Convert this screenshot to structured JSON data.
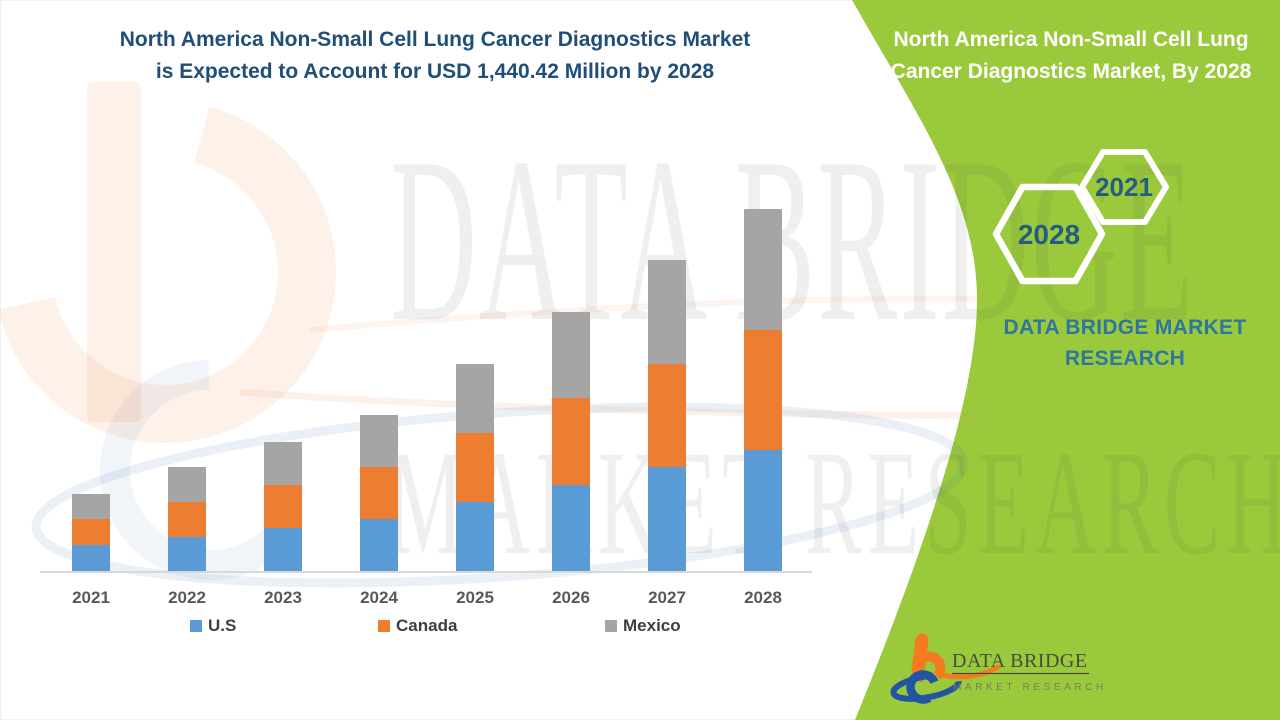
{
  "header": {
    "title_line1": "North America Non-Small Cell Lung Cancer Diagnostics Market",
    "title_line2": "is Expected to Account for USD 1,440.42 Million by 2028",
    "title_color": "#1F4E79"
  },
  "chart_data": {
    "type": "bar",
    "stacked": true,
    "title": "North America Non-Small Cell Lung Cancer Diagnostics Market is Expected to Account for USD 1,440.42 Million by 2028",
    "unit": "USD Million",
    "categories": [
      "2021",
      "2022",
      "2023",
      "2024",
      "2025",
      "2026",
      "2027",
      "2028"
    ],
    "series": [
      {
        "name": "U.S",
        "color": "#5B9BD5",
        "values": [
          103,
          137,
          171,
          207,
          275,
          344,
          412,
          480
        ]
      },
      {
        "name": "Canada",
        "color": "#ED7D31",
        "values": [
          102,
          137,
          170,
          206,
          274,
          344,
          412,
          480
        ]
      },
      {
        "name": "Mexico",
        "color": "#A5A5A5",
        "values": [
          103,
          138,
          171,
          207,
          275,
          344,
          412,
          480.42
        ]
      }
    ],
    "totals": [
      308,
      412,
      512,
      620,
      824,
      1032,
      1236,
      1440.42
    ],
    "labeled_total_2028": "USD 1,440.42 Million",
    "values_note": "only 2028 total is labeled on image; other values estimated from bar heights",
    "ylim": [
      0,
      1500
    ],
    "grid": false,
    "xlabel": "",
    "ylabel": "",
    "legend_position": "bottom"
  },
  "legend": {
    "items": [
      {
        "label": "U.S",
        "color": "#5B9BD5"
      },
      {
        "label": "Canada",
        "color": "#ED7D31"
      },
      {
        "label": "Mexico",
        "color": "#A5A5A5"
      }
    ]
  },
  "side_panel": {
    "background_color": "#9ACA3C",
    "title_line1": "North America Non-Small Cell Lung",
    "title_line2": "Cancer Diagnostics Market, By 2028",
    "hexagon_small_label": "2021",
    "hexagon_large_label": "2028",
    "hexagon_text_color": "#255C80",
    "brand_line1": "DATA BRIDGE MARKET",
    "brand_line2": "RESEARCH",
    "brand_text_color": "#2E76A0"
  },
  "footer_logo": {
    "name": "DATA BRIDGE",
    "tagline": "MARKET RESEARCH"
  },
  "watermark": {
    "line1": "DATA BRIDGE",
    "line2": "MARKET RESEARCH"
  }
}
